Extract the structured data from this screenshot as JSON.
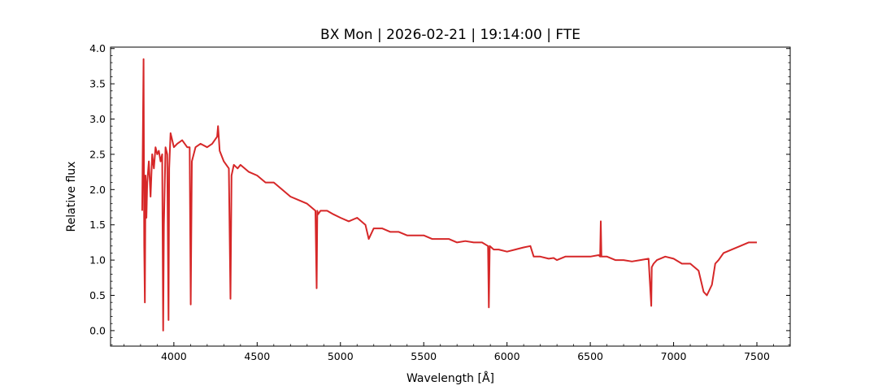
{
  "chart_data": {
    "type": "line",
    "title": "BX Mon | 2026-02-21 | 19:14:00 | FTE",
    "xlabel": "Wavelength [Å]",
    "ylabel": "Relative flux",
    "xlim": [
      3620,
      7700
    ],
    "ylim": [
      -0.22,
      4.02
    ],
    "x_ticks": [
      4000,
      4500,
      5000,
      5500,
      6000,
      6500,
      7000,
      7500
    ],
    "y_ticks": [
      0.0,
      0.5,
      1.0,
      1.5,
      2.0,
      2.5,
      3.0,
      3.5,
      4.0
    ],
    "x_tick_labels": [
      "4000",
      "4500",
      "5000",
      "5500",
      "6000",
      "6500",
      "7000",
      "7500"
    ],
    "y_tick_labels": [
      "0.0",
      "0.5",
      "1.0",
      "1.5",
      "2.0",
      "2.5",
      "3.0",
      "3.5",
      "4.0"
    ],
    "grid": false,
    "line_color": "#d62728",
    "series": [
      {
        "x": [
          3810,
          3818,
          3822,
          3826,
          3830,
          3835,
          3840,
          3850,
          3860,
          3870,
          3880,
          3890,
          3900,
          3910,
          3920,
          3930,
          3936,
          3940,
          3950,
          3960,
          3968,
          3972,
          3980,
          4000,
          4020,
          4050,
          4080,
          4095,
          4101,
          4108,
          4130,
          4160,
          4200,
          4230,
          4260,
          4265,
          4275,
          4300,
          4330,
          4340,
          4346,
          4360,
          4383,
          4400,
          4450,
          4500,
          4550,
          4600,
          4650,
          4700,
          4750,
          4800,
          4850,
          4857,
          4861,
          4866,
          4880,
          4920,
          4957,
          5000,
          5050,
          5100,
          5150,
          5170,
          5200,
          5250,
          5300,
          5350,
          5400,
          5450,
          5500,
          5550,
          5600,
          5650,
          5700,
          5750,
          5800,
          5850,
          5886,
          5891,
          5896,
          5920,
          5950,
          6000,
          6050,
          6100,
          6140,
          6160,
          6200,
          6250,
          6280,
          6300,
          6350,
          6400,
          6450,
          6500,
          6550,
          6559,
          6563,
          6567,
          6600,
          6650,
          6700,
          6750,
          6800,
          6850,
          6866,
          6869,
          6880,
          6900,
          6950,
          7000,
          7050,
          7100,
          7150,
          7180,
          7200,
          7230,
          7250,
          7270,
          7300,
          7350,
          7400,
          7450,
          7500
        ],
        "y": [
          1.7,
          3.85,
          1.2,
          0.4,
          2.2,
          1.6,
          2.1,
          2.4,
          1.9,
          2.5,
          2.3,
          2.6,
          2.5,
          2.55,
          2.4,
          2.5,
          0.0,
          1.5,
          2.6,
          2.5,
          0.15,
          2.3,
          2.8,
          2.6,
          2.65,
          2.7,
          2.6,
          2.6,
          0.37,
          2.4,
          2.6,
          2.65,
          2.6,
          2.65,
          2.75,
          2.9,
          2.55,
          2.4,
          2.3,
          0.45,
          2.2,
          2.35,
          2.3,
          2.35,
          2.25,
          2.2,
          2.1,
          2.1,
          2.0,
          1.9,
          1.85,
          1.8,
          1.7,
          0.6,
          1.7,
          1.65,
          1.7,
          1.7,
          1.65,
          1.6,
          1.55,
          1.6,
          1.5,
          1.3,
          1.45,
          1.45,
          1.4,
          1.4,
          1.35,
          1.35,
          1.35,
          1.3,
          1.3,
          1.3,
          1.25,
          1.27,
          1.25,
          1.25,
          1.2,
          0.33,
          1.2,
          1.15,
          1.15,
          1.12,
          1.15,
          1.18,
          1.2,
          1.05,
          1.05,
          1.02,
          1.03,
          1.0,
          1.05,
          1.05,
          1.05,
          1.05,
          1.07,
          1.05,
          1.55,
          1.05,
          1.05,
          1.0,
          1.0,
          0.98,
          1.0,
          1.02,
          0.35,
          0.9,
          0.95,
          1.0,
          1.05,
          1.02,
          0.95,
          0.95,
          0.85,
          0.55,
          0.5,
          0.65,
          0.95,
          1.0,
          1.1,
          1.15,
          1.2,
          1.25,
          1.25
        ]
      }
    ]
  }
}
